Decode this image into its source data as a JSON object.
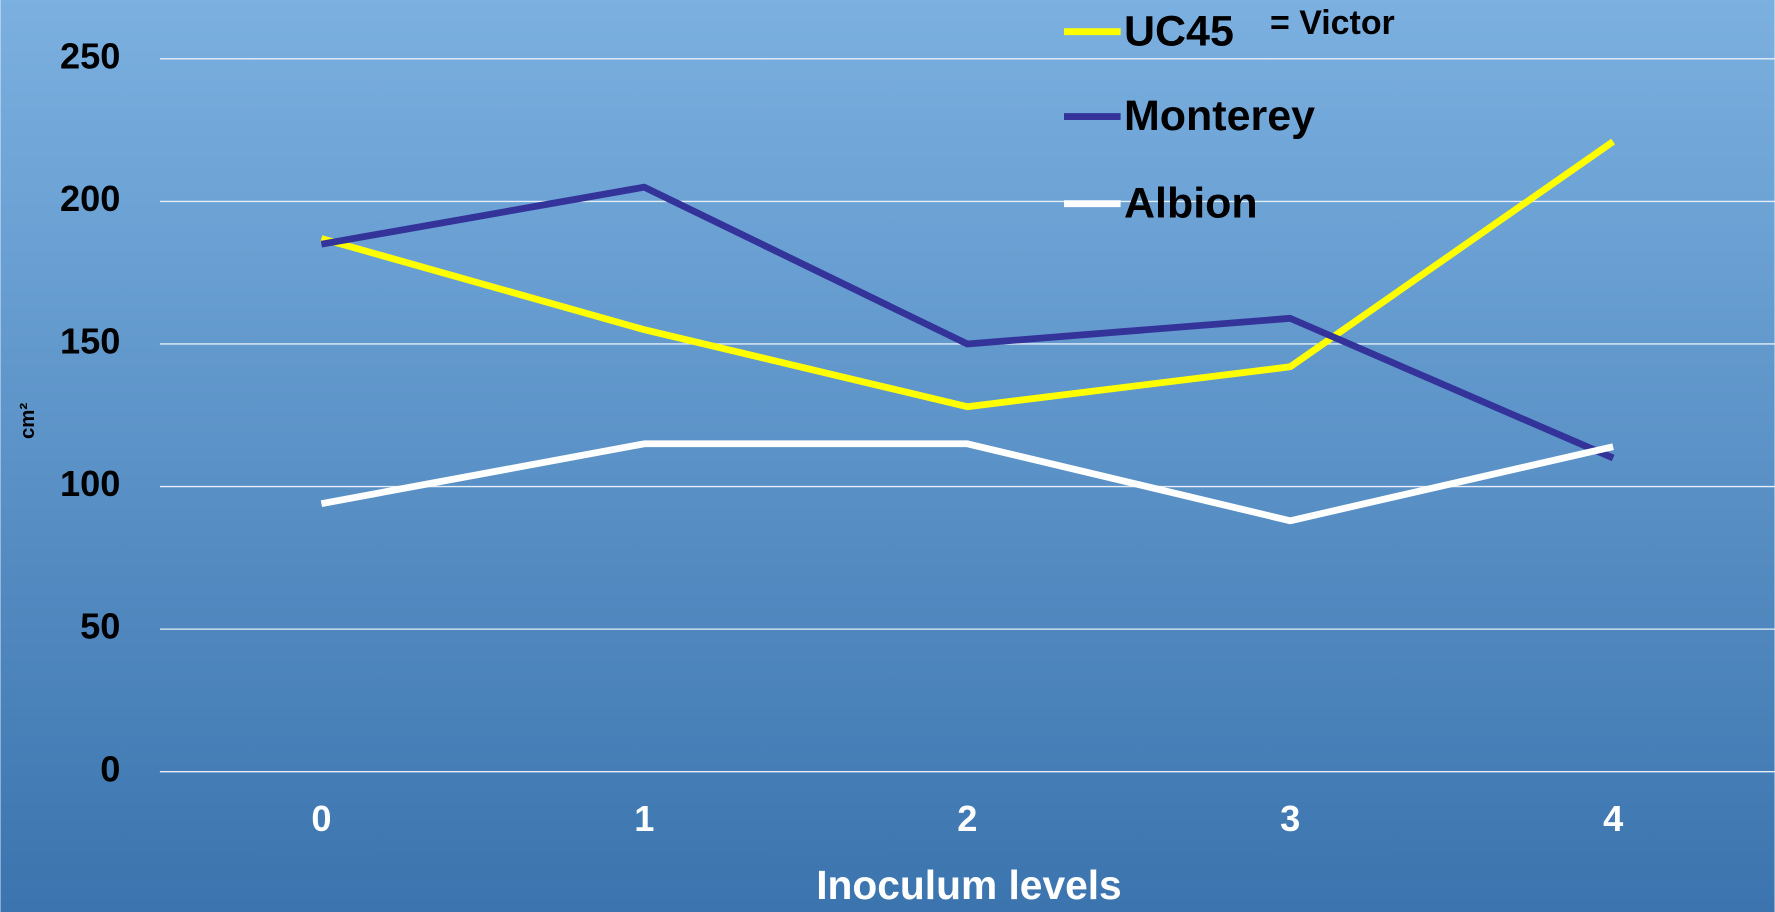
{
  "chart_data": {
    "type": "line",
    "x_label": "Inoculum levels",
    "y_label": "cm²",
    "annotation": "= Victor",
    "categories": [
      "0",
      "1",
      "2",
      "3",
      "4"
    ],
    "series": [
      {
        "name": "UC45",
        "color": "#ffff00",
        "values": [
          187,
          155,
          128,
          142,
          221
        ]
      },
      {
        "name": "Monterey",
        "color": "#33339a",
        "values": [
          185,
          205,
          150,
          159,
          110
        ]
      },
      {
        "name": "Albion",
        "color": "#ffffff",
        "values": [
          94,
          115,
          115,
          88,
          114
        ]
      }
    ],
    "ylim": [
      0,
      250
    ],
    "yticks": [
      0,
      50,
      100,
      150,
      200,
      250
    ],
    "grid": true
  }
}
